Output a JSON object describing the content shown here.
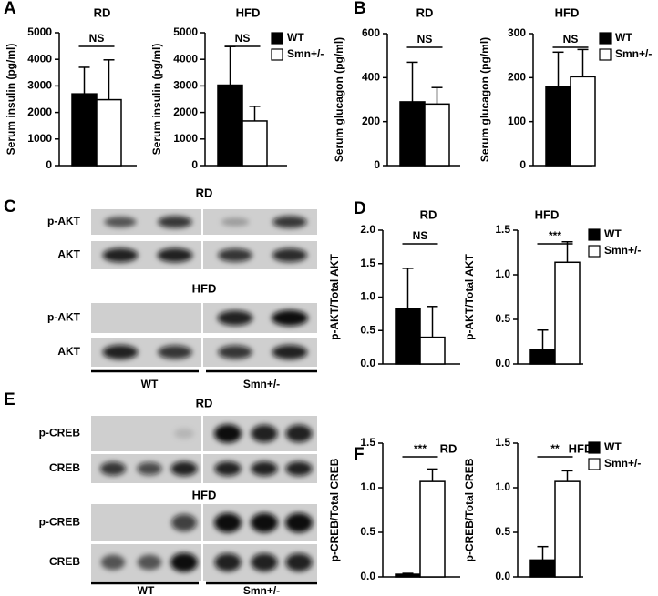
{
  "figure": {
    "panels": [
      "A",
      "B",
      "C",
      "D",
      "E",
      "F"
    ],
    "blots": [
      {
        "groups": [
          {
            "title": "RD",
            "rows": [
              "p-AKT",
              "AKT"
            ]
          },
          {
            "title": "HFD",
            "rows": [
              "p-AKT",
              "AKT"
            ]
          }
        ],
        "lanes": [
          "WT",
          "Smn+/-"
        ]
      },
      {
        "groups": [
          {
            "title": "RD",
            "rows": [
              "p-CREB",
              "CREB"
            ]
          },
          {
            "title": "HFD",
            "rows": [
              "p-CREB",
              "CREB"
            ]
          }
        ],
        "lanes": [
          "WT",
          "Smn+/-"
        ]
      }
    ]
  },
  "chart_data": [
    {
      "type": "bar",
      "title": "RD",
      "y_label": "Serum insulin (pg/ml)",
      "annotation": "NS",
      "ylim": [
        0,
        5000
      ],
      "yticks": [
        0,
        1000,
        2000,
        3000,
        4000,
        5000
      ],
      "series": [
        {
          "color": "#000000",
          "values": [
            2700
          ],
          "errors": [
            1000
          ]
        },
        {
          "color": "#ffffff",
          "values": [
            2480
          ],
          "errors": [
            1500
          ]
        }
      ]
    },
    {
      "type": "bar",
      "title": "HFD",
      "y_label": "Serum insulin (pg/ml)",
      "annotation": "NS",
      "ylim": [
        0,
        5000
      ],
      "yticks": [
        0,
        1000,
        2000,
        3000,
        4000,
        5000
      ],
      "series": [
        {
          "name": "WT",
          "color": "#000000",
          "values": [
            3030
          ],
          "errors": [
            1450
          ]
        },
        {
          "name": "Smn+/-",
          "color": "#ffffff",
          "values": [
            1680
          ],
          "errors": [
            550
          ]
        }
      ]
    },
    {
      "type": "bar",
      "title": "RD",
      "y_label": "Serum glucagon (pg/ml)",
      "annotation": "NS",
      "ylim": [
        0,
        600
      ],
      "yticks": [
        0,
        200,
        400,
        600
      ],
      "series": [
        {
          "color": "#000000",
          "values": [
            290
          ],
          "errors": [
            180
          ]
        },
        {
          "color": "#ffffff",
          "values": [
            280
          ],
          "errors": [
            75
          ]
        }
      ]
    },
    {
      "type": "bar",
      "title": "HFD",
      "y_label": "Serum glucagon (pg/ml)",
      "annotation": "NS",
      "ylim": [
        0,
        300
      ],
      "yticks": [
        0,
        100,
        200,
        300
      ],
      "series": [
        {
          "name": "WT",
          "color": "#000000",
          "values": [
            180
          ],
          "errors": [
            78
          ]
        },
        {
          "name": "Smn+/-",
          "color": "#ffffff",
          "values": [
            202
          ],
          "errors": [
            62
          ]
        }
      ]
    },
    {
      "type": "bar",
      "title": "RD",
      "y_label": "p-AKT/Total AKT",
      "annotation": "NS",
      "ylim": [
        0,
        2
      ],
      "yticks": [
        {
          "value": 0,
          "label": "0.0"
        },
        0.5,
        {
          "value": 1,
          "label": "1.0"
        },
        1.5,
        {
          "value": 2,
          "label": "2.0"
        }
      ],
      "series": [
        {
          "color": "#000000",
          "values": [
            0.83
          ],
          "errors": [
            0.6
          ]
        },
        {
          "color": "#ffffff",
          "values": [
            0.4
          ],
          "errors": [
            0.46
          ]
        }
      ]
    },
    {
      "type": "bar",
      "title": "HFD",
      "y_label": "p-AKT/Total AKT",
      "annotation": "***",
      "ylim": [
        0,
        1.5
      ],
      "yticks": [
        {
          "value": 0,
          "label": "0.0"
        },
        0.5,
        {
          "value": 1,
          "label": "1.0"
        },
        1.5
      ],
      "series": [
        {
          "name": "WT",
          "color": "#000000",
          "values": [
            0.16
          ],
          "errors": [
            0.22
          ]
        },
        {
          "name": "Smn+/-",
          "color": "#ffffff",
          "values": [
            1.14
          ],
          "errors": [
            0.23
          ]
        }
      ]
    },
    {
      "type": "bar",
      "title": "RD",
      "y_label": "p-CREB/Total CREB",
      "annotation": "***",
      "ylim": [
        0,
        1.5
      ],
      "yticks": [
        {
          "value": 0,
          "label": "0.0"
        },
        0.5,
        {
          "value": 1,
          "label": "1.0"
        },
        1.5
      ],
      "series": [
        {
          "color": "#000000",
          "values": [
            0.03
          ],
          "errors": [
            0.01
          ]
        },
        {
          "color": "#ffffff",
          "values": [
            1.07
          ],
          "errors": [
            0.14
          ]
        }
      ]
    },
    {
      "type": "bar",
      "title": "HFD",
      "y_label": "p-CREB/Total CREB",
      "annotation": "**",
      "ylim": [
        0,
        1.5
      ],
      "yticks": [
        {
          "value": 0,
          "label": "0.0"
        },
        0.5,
        {
          "value": 1,
          "label": "1.0"
        },
        1.5
      ],
      "series": [
        {
          "name": "WT",
          "color": "#000000",
          "values": [
            0.19
          ],
          "errors": [
            0.15
          ]
        },
        {
          "name": "Smn+/-",
          "color": "#ffffff",
          "values": [
            1.07
          ],
          "errors": [
            0.12
          ]
        }
      ]
    }
  ]
}
